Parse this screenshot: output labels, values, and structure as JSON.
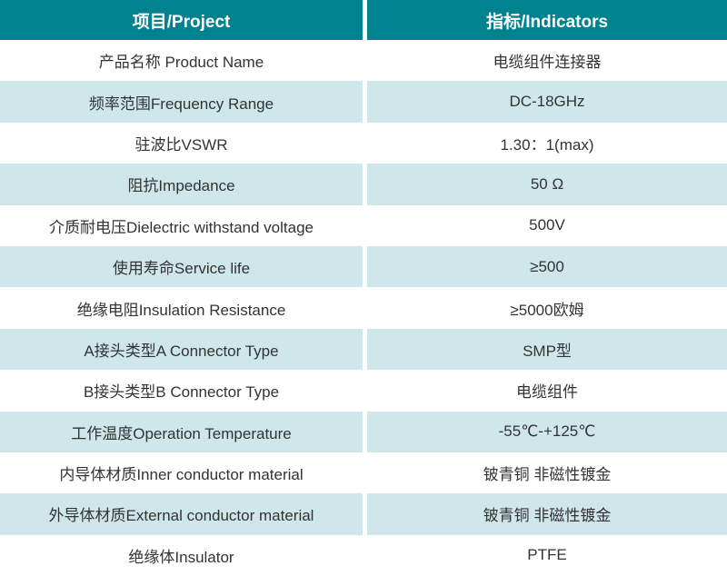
{
  "table": {
    "header": {
      "project_label": "项目/Project",
      "indicators_label": "指标/Indicators"
    },
    "rows": [
      {
        "project": "产品名称 Product Name",
        "indicator": "电缆组件连接器"
      },
      {
        "project": "频率范围Frequency Range",
        "indicator": "DC-18GHz"
      },
      {
        "project": "驻波比VSWR",
        "indicator": "1.30：1(max)"
      },
      {
        "project": "阻抗Impedance",
        "indicator": "50 Ω"
      },
      {
        "project": "介质耐电压Dielectric withstand voltage",
        "indicator": "500V"
      },
      {
        "project": "使用寿命Service life",
        "indicator": "≥500"
      },
      {
        "project": "绝缘电阻Insulation Resistance",
        "indicator": "≥5000欧姆"
      },
      {
        "project": "A接头类型A Connector Type",
        "indicator": "SMP型"
      },
      {
        "project": "B接头类型B Connector Type",
        "indicator": "电缆组件"
      },
      {
        "project": "工作温度Operation Temperature",
        "indicator": "-55℃-+125℃"
      },
      {
        "project": "内导体材质Inner conductor material",
        "indicator": "铍青铜 非磁性镀金"
      },
      {
        "project": "外导体材质External conductor material",
        "indicator": "铍青铜 非磁性镀金"
      },
      {
        "project": "绝缘体Insulator",
        "indicator": "PTFE"
      }
    ],
    "colors": {
      "header_bg": "#00828f",
      "header_text": "#ffffff",
      "row_bg": "#ffffff",
      "row_alt_bg": "#cfe6ea",
      "body_text": "#333333",
      "divider": "#ffffff"
    }
  }
}
